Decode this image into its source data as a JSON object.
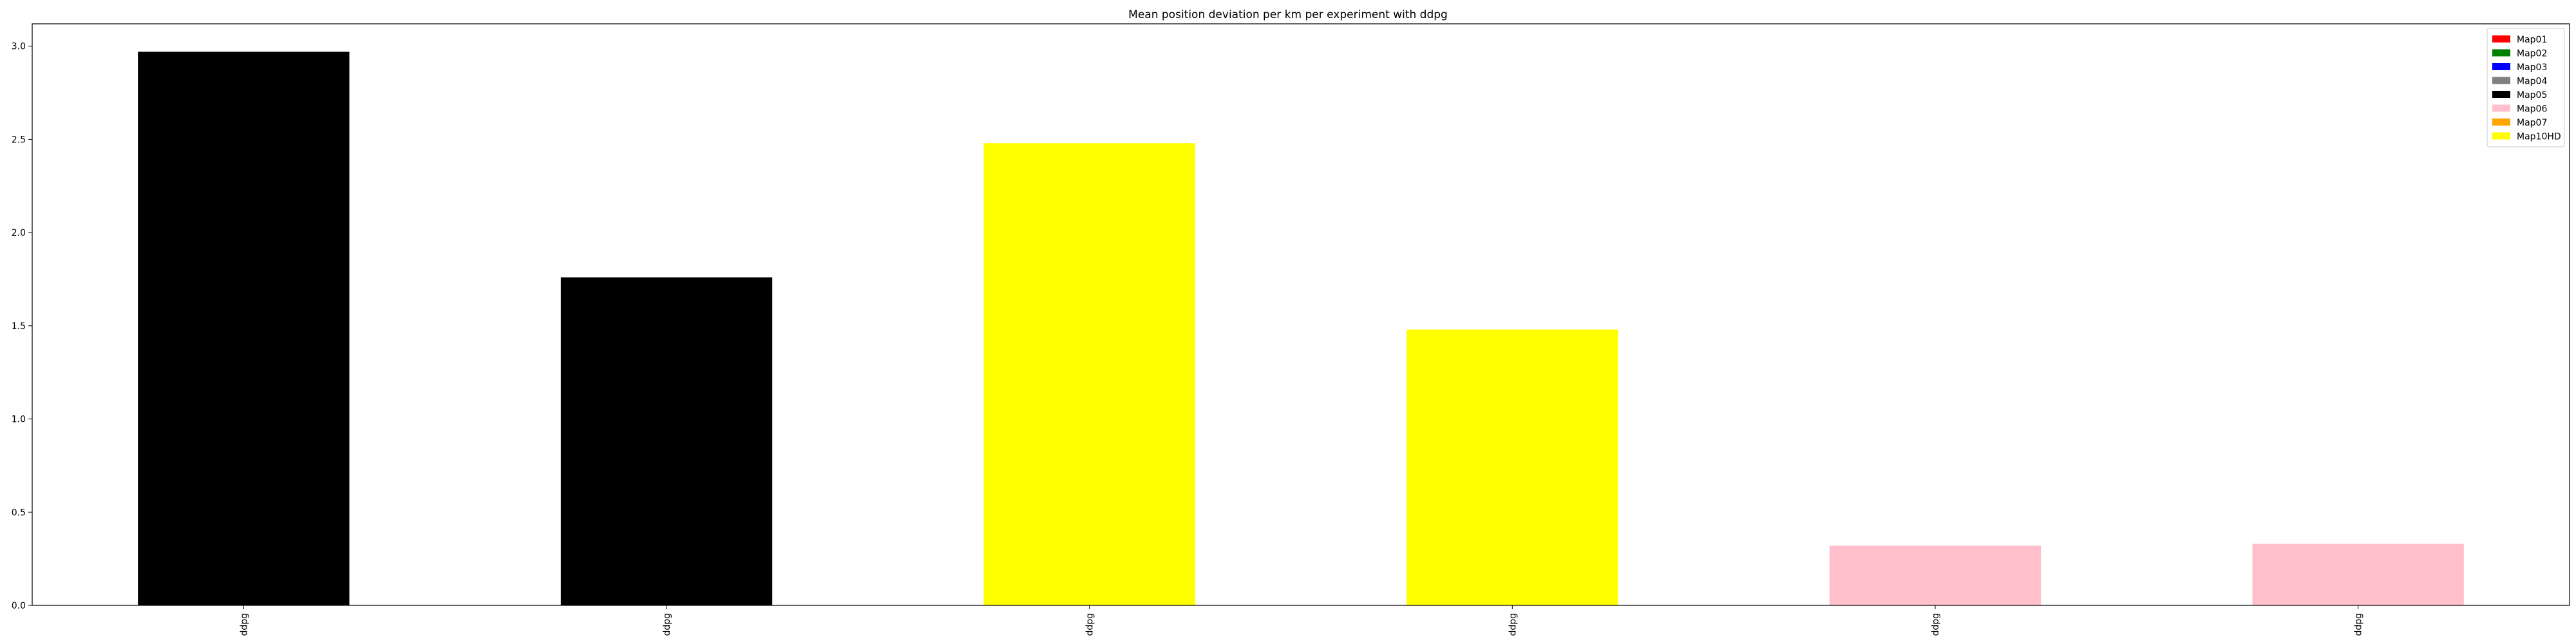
{
  "chart_data": {
    "type": "bar",
    "title": "Mean position deviation per km per experiment with ddpg",
    "xlabel": "",
    "ylabel": "",
    "categories": [
      "ddpg",
      "ddpg",
      "ddpg",
      "ddpg",
      "ddpg",
      "ddpg"
    ],
    "values": [
      2.97,
      1.76,
      2.48,
      1.48,
      0.32,
      0.33
    ],
    "bar_colors": [
      "#000000",
      "#000000",
      "#ffff00",
      "#ffff00",
      "#ffc0cb",
      "#ffc0cb"
    ],
    "ylim": [
      0,
      3.12
    ],
    "yticks": [
      0.0,
      0.5,
      1.0,
      1.5,
      2.0,
      2.5,
      3.0
    ],
    "ytick_labels": [
      "0.0",
      "0.5",
      "1.0",
      "1.5",
      "2.0",
      "2.5",
      "3.0"
    ],
    "grid": false,
    "legend": {
      "placement": "top-right",
      "entries": [
        {
          "label": "Map01",
          "color": "#ff0000"
        },
        {
          "label": "Map02",
          "color": "#008000"
        },
        {
          "label": "Map03",
          "color": "#0000ff"
        },
        {
          "label": "Map04",
          "color": "#808080"
        },
        {
          "label": "Map05",
          "color": "#000000"
        },
        {
          "label": "Map06",
          "color": "#ffc0cb"
        },
        {
          "label": "Map07",
          "color": "#ffa500"
        },
        {
          "label": "Map10HD",
          "color": "#ffff00"
        }
      ]
    }
  }
}
